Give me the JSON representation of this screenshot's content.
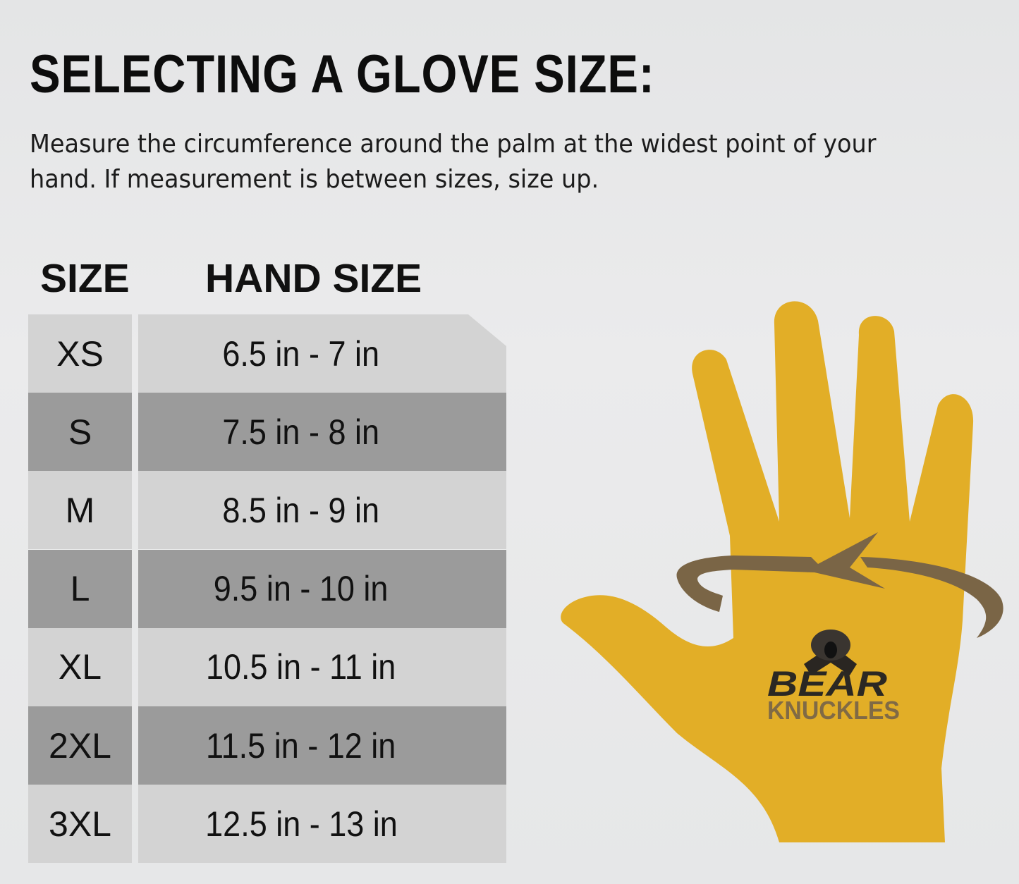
{
  "title": "SELECTING A GLOVE SIZE:",
  "description": "Measure the circumference around the palm at the widest point of your hand. If measurement is between sizes, size up.",
  "table": {
    "headers": [
      "SIZE",
      "HAND SIZE"
    ],
    "rows": [
      {
        "size": "XS",
        "hand": "6.5 in - 7 in"
      },
      {
        "size": "S",
        "hand": "7.5 in - 8 in"
      },
      {
        "size": "M",
        "hand": "8.5 in - 9 in"
      },
      {
        "size": "L",
        "hand": "9.5 in - 10 in"
      },
      {
        "size": "XL",
        "hand": "10.5 in - 11 in"
      },
      {
        "size": "2XL",
        "hand": "11.5 in - 12 in"
      },
      {
        "size": "3XL",
        "hand": "12.5 in - 13 in"
      }
    ]
  },
  "logo": {
    "line1": "BEAR",
    "line2": "KNUCKLES"
  },
  "colors": {
    "hand": "#e2ae27",
    "arrow": "#7a6546",
    "row_light": "#d3d3d3",
    "row_dark": "#9b9b9b"
  }
}
